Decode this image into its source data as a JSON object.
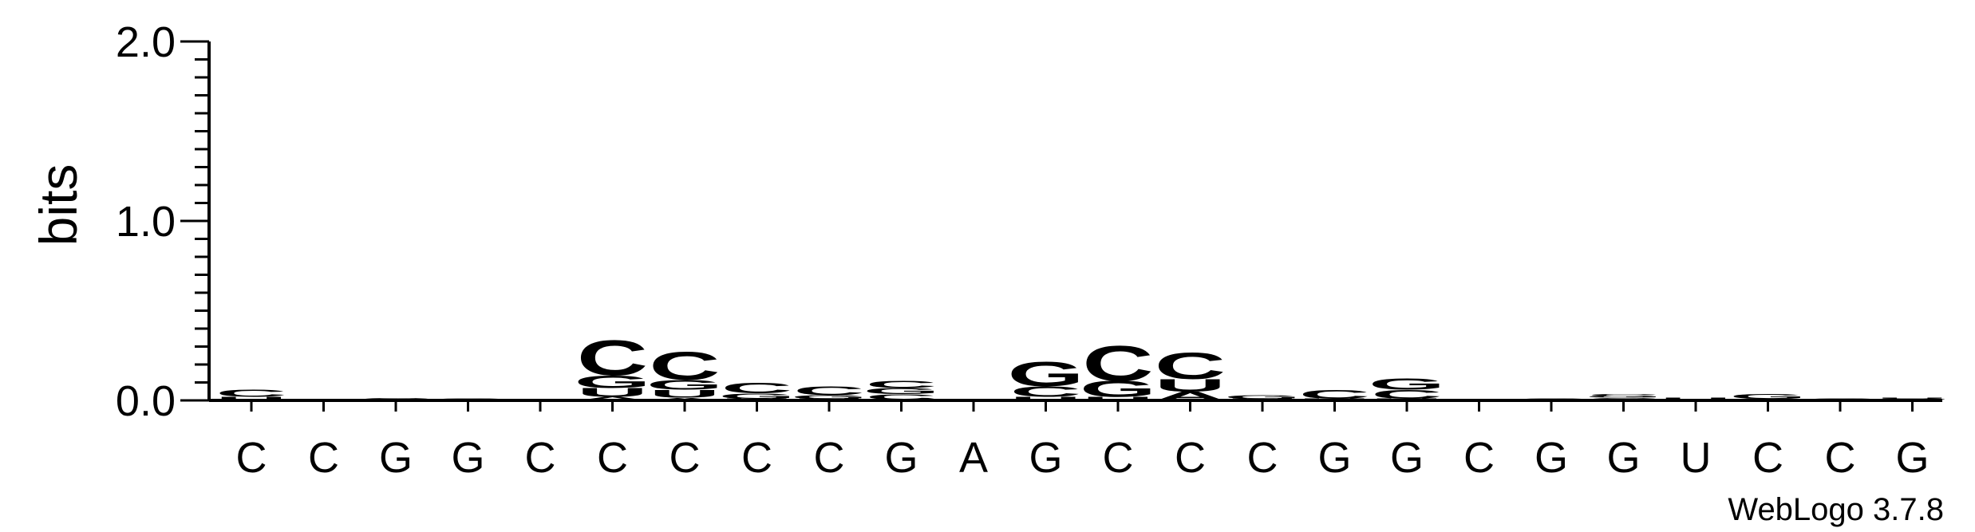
{
  "chart_data": {
    "type": "sequence-logo",
    "ylabel": "bits",
    "ylim": [
      0,
      2.0
    ],
    "yticks": [
      "0.0",
      "1.0",
      "2.0"
    ],
    "credit": "WebLogo 3.7.8",
    "colors": {
      "C": "#0000ff",
      "G": "#0000ff",
      "U": "#ff8c00",
      "A": "#ff8c00"
    },
    "positions": [
      {
        "label": "C",
        "stack": [
          [
            "U",
            0.02
          ],
          [
            "C",
            0.04
          ]
        ]
      },
      {
        "label": "C",
        "stack": []
      },
      {
        "label": "G",
        "stack": [
          [
            "C",
            0.015
          ]
        ]
      },
      {
        "label": "G",
        "stack": [
          [
            "C",
            0.01
          ]
        ]
      },
      {
        "label": "C",
        "stack": []
      },
      {
        "label": "C",
        "stack": [
          [
            "A",
            0.02
          ],
          [
            "U",
            0.05
          ],
          [
            "G",
            0.07
          ],
          [
            "C",
            0.2
          ]
        ]
      },
      {
        "label": "C",
        "stack": [
          [
            "A",
            0.015
          ],
          [
            "U",
            0.045
          ],
          [
            "G",
            0.055
          ],
          [
            "C",
            0.16
          ]
        ]
      },
      {
        "label": "C",
        "stack": [
          [
            "U",
            0.01
          ],
          [
            "G",
            0.03
          ],
          [
            "C",
            0.06
          ]
        ]
      },
      {
        "label": "C",
        "stack": [
          [
            "U",
            0.01
          ],
          [
            "G",
            0.02
          ],
          [
            "C",
            0.05
          ]
        ]
      },
      {
        "label": "G",
        "stack": [
          [
            "U",
            0.005
          ],
          [
            "C",
            0.03
          ],
          [
            "G",
            0.035
          ],
          [
            "C",
            0.04
          ]
        ]
      },
      {
        "label": "A",
        "stack": []
      },
      {
        "label": "G",
        "stack": [
          [
            "U",
            0.02
          ],
          [
            "C",
            0.06
          ],
          [
            "G",
            0.14
          ]
        ]
      },
      {
        "label": "C",
        "stack": [
          [
            "U",
            0.02
          ],
          [
            "G",
            0.09
          ],
          [
            "C",
            0.2
          ]
        ]
      },
      {
        "label": "C",
        "stack": [
          [
            "A",
            0.05
          ],
          [
            "U",
            0.07
          ],
          [
            "C",
            0.15
          ]
        ]
      },
      {
        "label": "C",
        "stack": [
          [
            "U",
            0.01
          ],
          [
            "G",
            0.02
          ]
        ]
      },
      {
        "label": "G",
        "stack": [
          [
            "U",
            0.01
          ],
          [
            "C",
            0.05
          ]
        ]
      },
      {
        "label": "G",
        "stack": [
          [
            "U",
            0.01
          ],
          [
            "C",
            0.05
          ],
          [
            "G",
            0.065
          ]
        ]
      },
      {
        "label": "C",
        "stack": []
      },
      {
        "label": "G",
        "stack": [
          [
            "C",
            0.01
          ]
        ]
      },
      {
        "label": "G",
        "stack": [
          [
            "C",
            0.015
          ],
          [
            "G",
            0.01
          ],
          [
            "C",
            0.01
          ]
        ]
      },
      {
        "label": "U",
        "stack": [
          [
            "C",
            0.005
          ],
          [
            "U",
            0.01
          ]
        ]
      },
      {
        "label": "C",
        "stack": [
          [
            "C",
            0.01
          ],
          [
            "G",
            0.025
          ]
        ]
      },
      {
        "label": "C",
        "stack": [
          [
            "C",
            0.01
          ]
        ]
      },
      {
        "label": "G",
        "stack": [
          [
            "U",
            0.005
          ],
          [
            "G",
            0.005
          ],
          [
            "U",
            0.005
          ]
        ]
      }
    ]
  }
}
